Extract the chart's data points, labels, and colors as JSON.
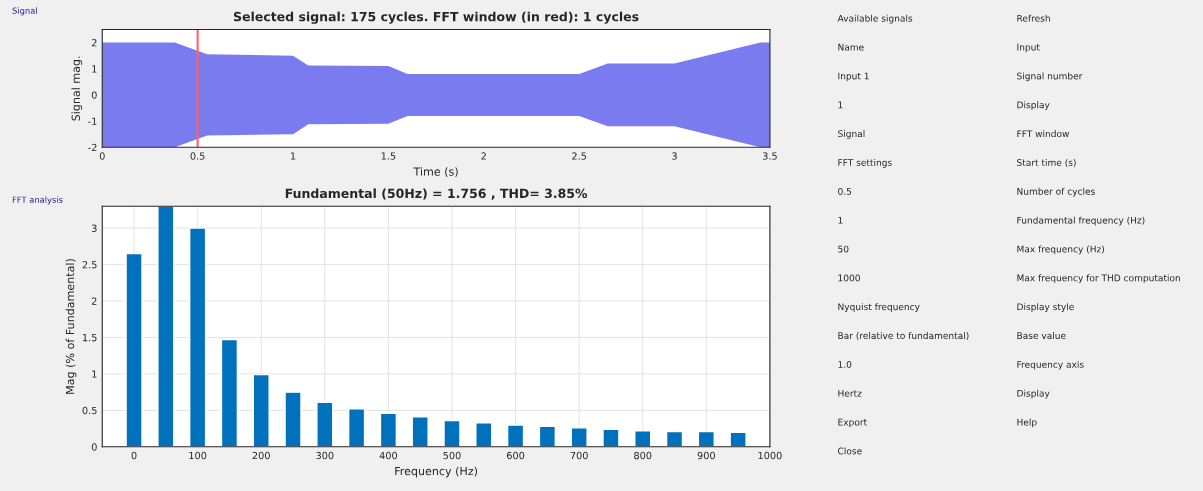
{
  "chart_data": [
    {
      "type": "area",
      "title": "Selected signal: 175 cycles. FFT window (in red): 1 cycles",
      "xlabel": "Time (s)",
      "ylabel": "Signal mag.",
      "annotations": [
        "Signal"
      ],
      "x": [
        0,
        0.38,
        0.55,
        1.0,
        1.08,
        1.5,
        1.6,
        2.5,
        2.65,
        3.0,
        3.45,
        3.5
      ],
      "series": [
        {
          "color": "#7b7bf0",
          "values": [
            2,
            2,
            1.55,
            1.5,
            1.12,
            1.1,
            0.8,
            0.8,
            1.2,
            1.2,
            2,
            2
          ]
        },
        {
          "color": "#7b7bf0",
          "values": [
            -2,
            -2,
            -1.55,
            -1.5,
            -1.12,
            -1.1,
            -0.8,
            -0.8,
            -1.2,
            -1.2,
            -2,
            -2
          ]
        }
      ],
      "ref_lines": [
        {
          "axis": "x",
          "value": 0.5,
          "color": "#ff6060"
        }
      ],
      "xlim": [
        0,
        3.5
      ],
      "xticks": [
        0,
        0.5,
        1,
        1.5,
        2,
        2.5,
        3,
        3.5
      ],
      "ylim": [
        -2,
        2.5
      ],
      "yticks": [
        -2,
        -1,
        0,
        1,
        2
      ],
      "grid": false
    },
    {
      "type": "bar",
      "title": "Fundamental (50Hz) = 1.756 , THD= 3.85%",
      "xlabel": "Frequency (Hz)",
      "ylabel": "Mag (% of Fundamental)",
      "annotations": [
        "FFT analysis"
      ],
      "x": [
        0,
        50,
        100,
        150,
        200,
        250,
        300,
        350,
        400,
        450,
        500,
        550,
        600,
        650,
        700,
        750,
        800,
        850,
        900,
        950
      ],
      "series": [
        {
          "color": "#0072bd",
          "values": [
            2.65,
            3.3,
            3.0,
            1.47,
            0.99,
            0.75,
            0.61,
            0.52,
            0.46,
            0.41,
            0.36,
            0.33,
            0.3,
            0.28,
            0.26,
            0.24,
            0.22,
            0.21,
            0.21,
            0.2
          ]
        }
      ],
      "xlim": [
        -50,
        1000
      ],
      "xticks": [
        0,
        100,
        200,
        300,
        400,
        500,
        600,
        700,
        800,
        900,
        1000
      ],
      "ylim": [
        0,
        3.3
      ],
      "yticks": [
        0,
        0.5,
        1,
        1.5,
        2,
        2.5,
        3
      ],
      "grid": true
    },
    {
      "type": "other",
      "annotations": [
        "Available signals",
        "Refresh",
        "Name",
        "Input",
        "Input 1",
        "Signal number",
        "1",
        "Display",
        "Signal",
        "FFT window",
        "FFT settings",
        "Start time (s)",
        "0.5",
        "Number of cycles",
        "1",
        "Fundamental frequency (Hz)",
        "50",
        "Max frequency (Hz)",
        "1000",
        "Max frequency for THD computation",
        "Nyquist frequency",
        "Display style",
        "Bar (relative to fundamental)",
        "Base value",
        "1.0",
        "Frequency axis",
        "Hertz",
        "Display",
        "Export",
        "Help",
        "Close"
      ]
    }
  ]
}
